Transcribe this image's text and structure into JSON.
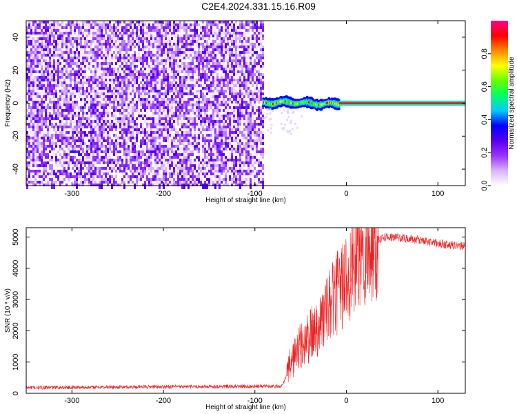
{
  "page": {
    "title": "C2E4.2024.331.15.16.R09"
  },
  "chart_data": [
    {
      "type": "heatmap",
      "title": "",
      "xlabel": "Height of straight line (km)",
      "ylabel": "Frequency (Hz)",
      "xlim": [
        -350,
        130
      ],
      "ylim": [
        -50,
        50
      ],
      "xticks": [
        -300,
        -200,
        -100,
        0,
        100
      ],
      "yticks": [
        -40,
        -20,
        0,
        20,
        40
      ],
      "grid": false,
      "colorbar": {
        "label": "Normalized spectral amplitude",
        "range": [
          0,
          1
        ],
        "ticks": [
          0.0,
          0.2,
          0.4,
          0.6,
          0.8
        ],
        "colors": [
          "#ffffff",
          "#d9b3ff",
          "#9933ff",
          "#5500ee",
          "#0000ff",
          "#00ccff",
          "#00ff66",
          "#66ff00",
          "#ffff00",
          "#ff8800",
          "#ff0000",
          "#ff0088"
        ]
      },
      "regions": [
        {
          "name": "noise",
          "x": [
            -350,
            -92
          ],
          "y": [
            -50,
            50
          ],
          "amplitude": [
            0.0,
            0.15
          ]
        },
        {
          "name": "transition",
          "x": [
            -92,
            -8
          ],
          "y": [
            -4,
            4
          ],
          "amplitude": [
            0.2,
            1.0
          ]
        },
        {
          "name": "carrier",
          "x": [
            -8,
            130
          ],
          "y": [
            -1.5,
            1.5
          ],
          "amplitude": [
            0.6,
            1.0
          ]
        }
      ]
    },
    {
      "type": "line",
      "title": "",
      "xlabel": "Height of straight line (km)",
      "ylabel": "SNR (10 * v/v)",
      "xlim": [
        -350,
        130
      ],
      "ylim": [
        0,
        5300
      ],
      "xticks": [
        -300,
        -200,
        -100,
        0,
        100
      ],
      "yticks": [
        0,
        1000,
        2000,
        3000,
        4000,
        5000
      ],
      "grid": false,
      "series": [
        {
          "color": "#ee2222",
          "x": [
            -350,
            -300,
            -250,
            -200,
            -150,
            -100,
            -70,
            -65,
            -60,
            -55,
            -50,
            -40,
            -30,
            -20,
            -10,
            0,
            10,
            20,
            30,
            40,
            60,
            80,
            100,
            120,
            130
          ],
          "y": [
            180,
            190,
            200,
            210,
            215,
            220,
            230,
            600,
            1000,
            1300,
            1500,
            1800,
            2200,
            2700,
            3200,
            3700,
            4200,
            4600,
            4850,
            5000,
            4980,
            4900,
            4800,
            4720,
            4700
          ]
        }
      ]
    }
  ]
}
